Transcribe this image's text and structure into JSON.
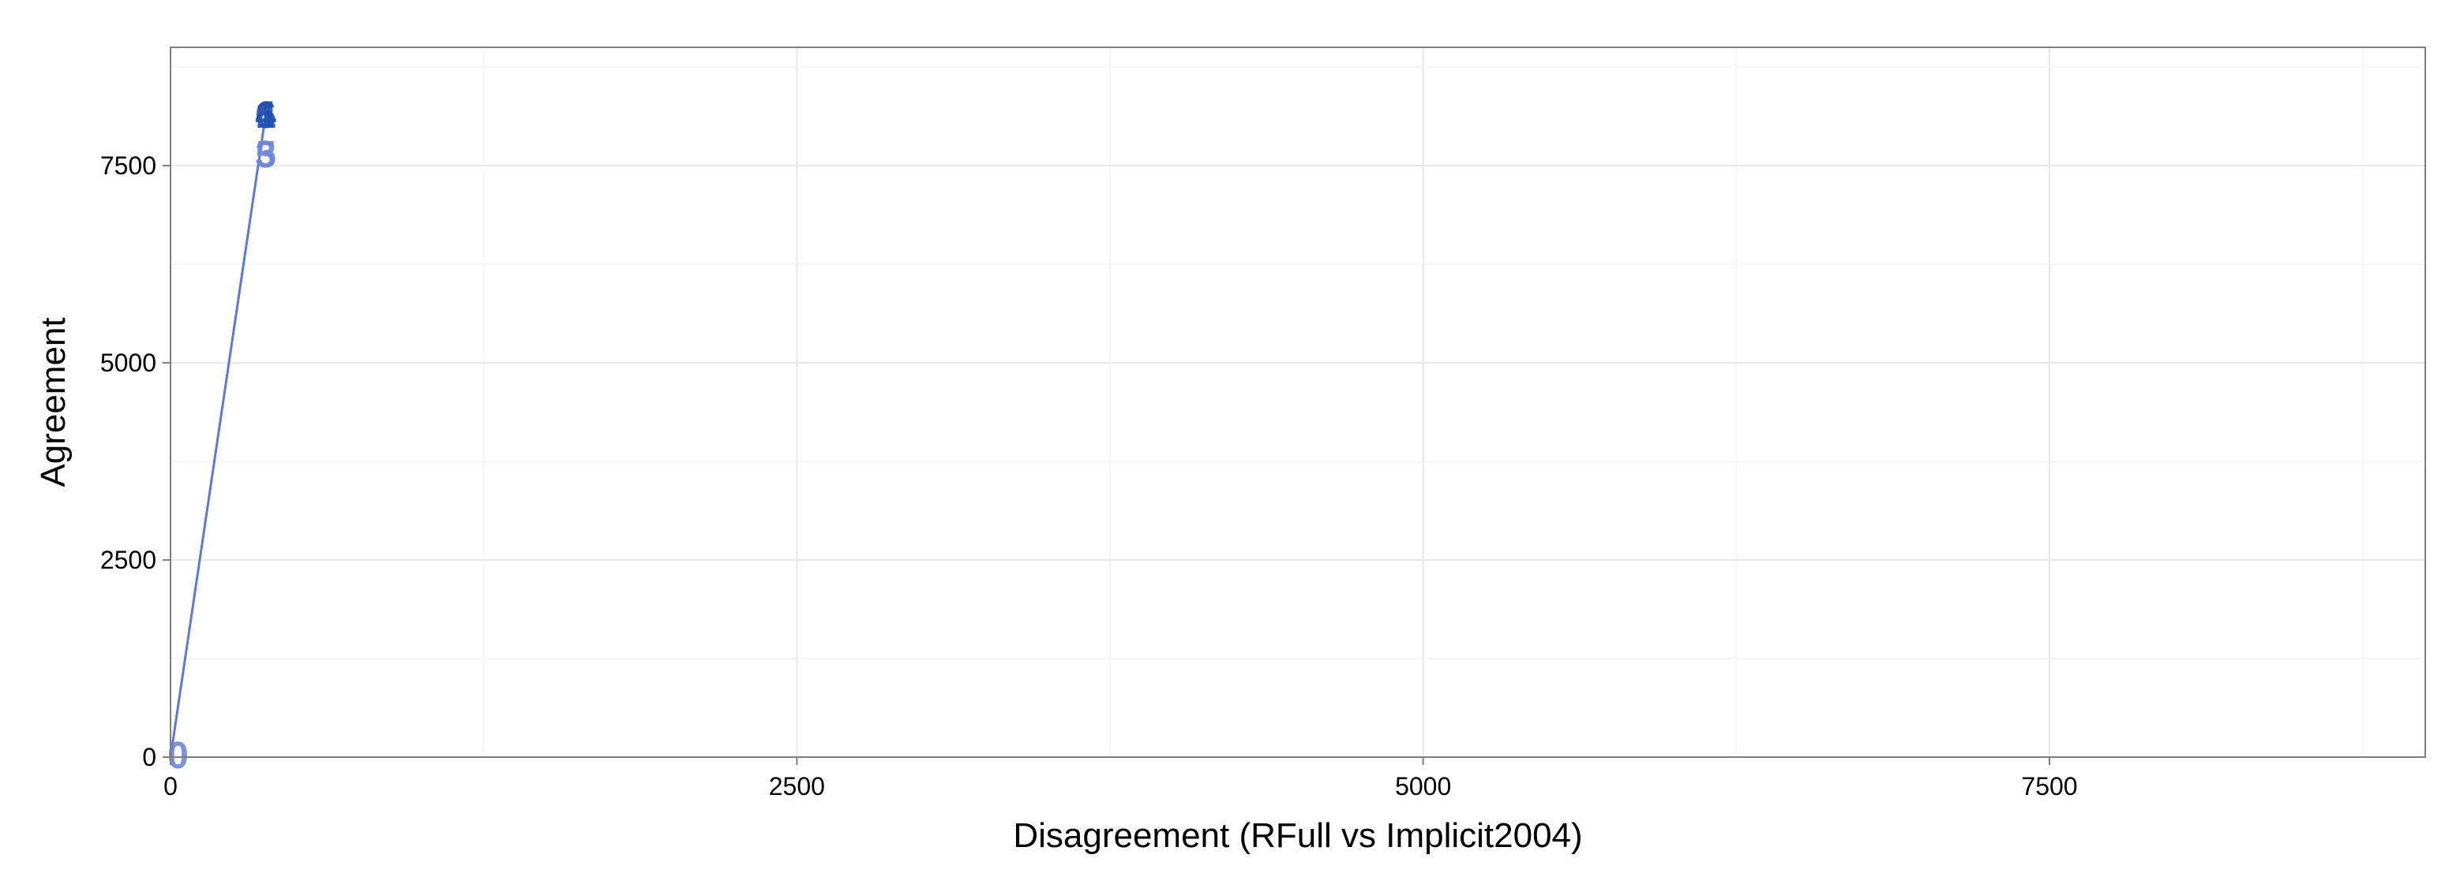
{
  "chart_data": {
    "type": "scatter",
    "title": "",
    "xlabel": "Disagreement (RFull vs Implicit2004)",
    "ylabel": "Agreement",
    "xlim": [
      0,
      9000
    ],
    "ylim": [
      0,
      9000
    ],
    "x_ticks": [
      0,
      2500,
      5000,
      7500
    ],
    "y_ticks": [
      0,
      2500,
      5000,
      7500
    ],
    "x_tick_labels": [
      "0",
      "2500",
      "5000",
      "7500"
    ],
    "y_tick_labels": [
      "0",
      "2500",
      "5000",
      "7500"
    ],
    "grid": true,
    "legend": "none",
    "colors": {
      "dark": "#1f4fb0",
      "light": "#6b86d8",
      "line": "#5b78dc"
    },
    "line": [
      {
        "x": 0,
        "y": 0
      },
      {
        "x": 380,
        "y": 8150
      }
    ],
    "points": [
      {
        "x": 30,
        "y": 30,
        "label": "0",
        "shade": "light"
      },
      {
        "x": 380,
        "y": 7650,
        "label": "3",
        "shade": "light"
      },
      {
        "x": 380,
        "y": 7650,
        "label": "5",
        "shade": "light"
      },
      {
        "x": 380,
        "y": 8150,
        "label": "6",
        "shade": "dark"
      },
      {
        "x": 380,
        "y": 8150,
        "label": "4",
        "shade": "dark"
      },
      {
        "x": 380,
        "y": 8150,
        "label": "1",
        "shade": "dark"
      }
    ]
  }
}
